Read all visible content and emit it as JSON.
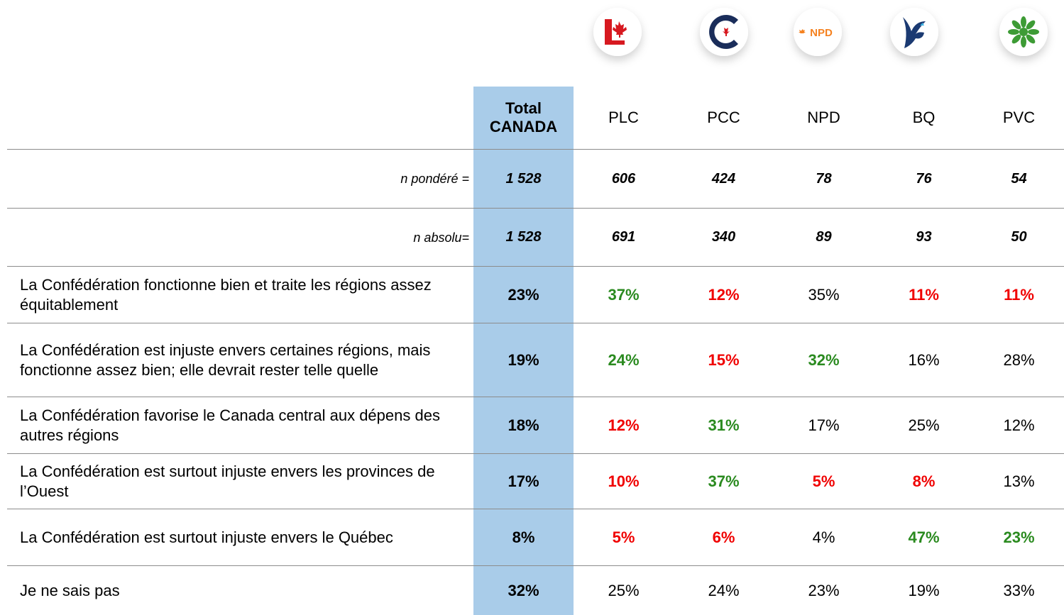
{
  "logos": {
    "npd_text": "NPD"
  },
  "table": {
    "columns": [
      "Total CANADA",
      "PLC",
      "PCC",
      "NPD",
      "BQ",
      "PVC"
    ],
    "colors": {
      "green": "#2a8a1f",
      "red": "#f00000",
      "black": "#000000"
    },
    "rows": [
      {
        "label": "n pondéré =",
        "kind": "count",
        "cells": [
          "1 528",
          "606",
          "424",
          "78",
          "76",
          "54"
        ],
        "colors": [
          "black",
          "black",
          "black",
          "black",
          "black",
          "black"
        ]
      },
      {
        "label": "n absolu=",
        "kind": "count",
        "cells": [
          "1 528",
          "691",
          "340",
          "89",
          "93",
          "50"
        ],
        "colors": [
          "black",
          "black",
          "black",
          "black",
          "black",
          "black"
        ]
      },
      {
        "label": "La Confédération fonctionne bien et traite les régions assez équitablement",
        "kind": "answer",
        "cells": [
          "23%",
          "37%",
          "12%",
          "35%",
          "11%",
          "11%"
        ],
        "colors": [
          "black",
          "green",
          "red",
          "black",
          "red",
          "red"
        ]
      },
      {
        "label": "La Confédération est injuste envers certaines régions, mais fonctionne assez bien; elle devrait rester telle quelle",
        "kind": "answer",
        "cells": [
          "19%",
          "24%",
          "15%",
          "32%",
          "16%",
          "28%"
        ],
        "colors": [
          "black",
          "green",
          "red",
          "green",
          "black",
          "black"
        ]
      },
      {
        "label": "La Confédération favorise le Canada central aux dépens des autres régions",
        "kind": "answer",
        "cells": [
          "18%",
          "12%",
          "31%",
          "17%",
          "25%",
          "12%"
        ],
        "colors": [
          "black",
          "red",
          "green",
          "black",
          "black",
          "black"
        ]
      },
      {
        "label": "La Confédération est surtout injuste envers les provinces de l’Ouest",
        "kind": "answer",
        "cells": [
          "17%",
          "10%",
          "37%",
          "5%",
          "8%",
          "13%"
        ],
        "colors": [
          "black",
          "red",
          "green",
          "red",
          "red",
          "black"
        ]
      },
      {
        "label": "La Confédération est surtout injuste envers le Québec",
        "kind": "answer",
        "cells": [
          "8%",
          "5%",
          "6%",
          "4%",
          "47%",
          "23%"
        ],
        "colors": [
          "black",
          "red",
          "red",
          "black",
          "green",
          "green"
        ]
      },
      {
        "label": "Je ne sais pas",
        "kind": "answer",
        "cells": [
          "32%",
          "25%",
          "24%",
          "23%",
          "19%",
          "33%"
        ],
        "colors": [
          "black",
          "black",
          "black",
          "black",
          "black",
          "black"
        ]
      }
    ]
  }
}
